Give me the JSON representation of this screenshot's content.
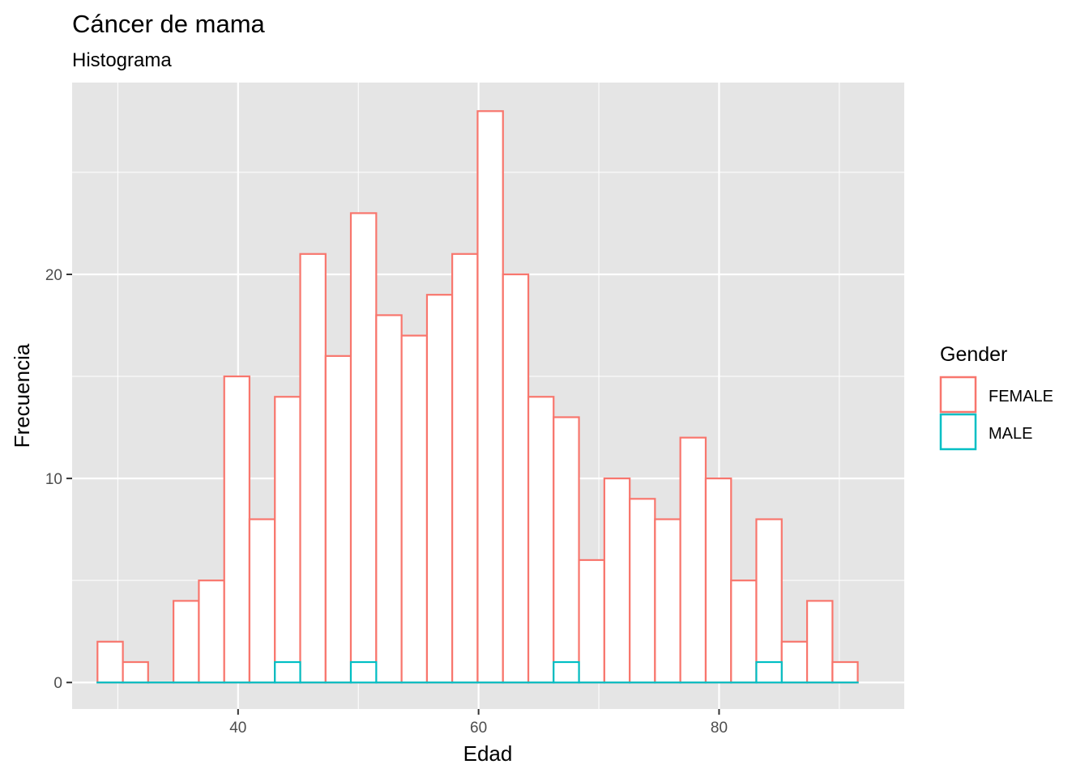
{
  "chart_data": {
    "type": "bar",
    "title": "Cáncer de mama",
    "subtitle": "Histograma",
    "xlabel": "Edad",
    "ylabel": "Frecuencia",
    "xlim": [
      26.2,
      95.4
    ],
    "ylim": [
      -1.3,
      29.4
    ],
    "x_ticks": [
      40,
      60,
      80
    ],
    "x_minor_ticks": [
      30,
      50,
      70,
      90
    ],
    "y_ticks": [
      0,
      10,
      20
    ],
    "y_minor_ticks": [
      5,
      15,
      25
    ],
    "grid": true,
    "legend_position": "right",
    "legend_title": "Gender",
    "bin_edges": [
      28.31,
      30.42,
      32.52,
      34.63,
      36.74,
      38.85,
      40.95,
      43.06,
      45.17,
      47.28,
      49.38,
      51.49,
      53.6,
      55.71,
      57.81,
      59.92,
      62.03,
      64.14,
      66.24,
      68.35,
      70.46,
      72.57,
      74.67,
      76.78,
      78.89,
      81.0,
      83.1,
      85.21,
      87.32,
      89.43,
      91.53
    ],
    "series": [
      {
        "name": "FEMALE",
        "color": "#F8766D",
        "values": [
          2,
          1,
          0,
          4,
          5,
          15,
          8,
          14,
          21,
          16,
          23,
          18,
          17,
          19,
          21,
          28,
          20,
          14,
          13,
          6,
          10,
          9,
          8,
          12,
          10,
          5,
          8,
          2,
          4,
          1
        ]
      },
      {
        "name": "MALE",
        "color": "#00BFC4",
        "values": [
          0,
          0,
          0,
          0,
          0,
          0,
          0,
          1,
          0,
          0,
          1,
          0,
          0,
          0,
          0,
          0,
          0,
          0,
          1,
          0,
          0,
          0,
          0,
          0,
          0,
          0,
          1,
          0,
          0,
          0
        ]
      }
    ]
  },
  "colors": {
    "panel_background": "#E5E5E5",
    "grid_line": "#FFFFFF",
    "bar_fill": "#FFFFFF"
  }
}
